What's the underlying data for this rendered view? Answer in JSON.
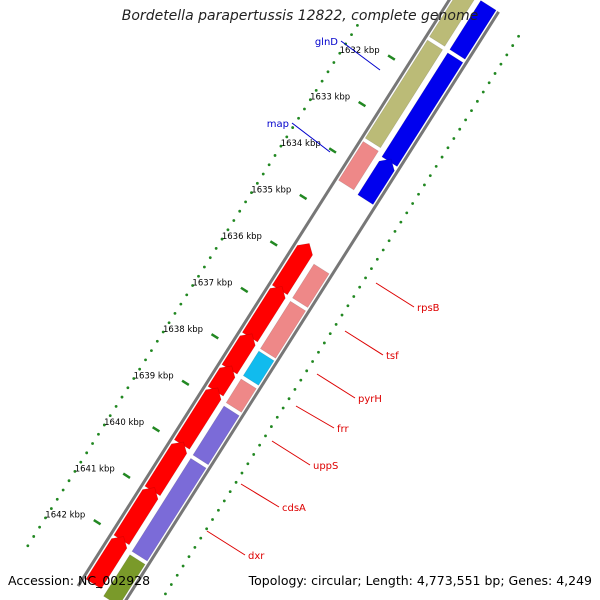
{
  "title": "Bordetella parapertussis 12822, complete genome",
  "footer": {
    "accession": "Accession: NC_002928",
    "summary": "Topology: circular; Length: 4,773,551 bp; Genes: 4,249"
  },
  "ticks": [
    "1632 kbp",
    "1633 kbp",
    "1634 kbp",
    "1635 kbp",
    "1636 kbp",
    "1637 kbp",
    "1638 kbp",
    "1639 kbp",
    "1640 kbp",
    "1641 kbp",
    "1642 kbp"
  ],
  "genes": [
    {
      "name": "glnD",
      "color": "#0000cc"
    },
    {
      "name": "map",
      "color": "#0000cc"
    },
    {
      "name": "rpsB",
      "color": "#dd0000"
    },
    {
      "name": "tsf",
      "color": "#dd0000"
    },
    {
      "name": "pyrH",
      "color": "#dd0000"
    },
    {
      "name": "frr",
      "color": "#dd0000"
    },
    {
      "name": "uppS",
      "color": "#dd0000"
    },
    {
      "name": "cdsA",
      "color": "#dd0000"
    },
    {
      "name": "dxr",
      "color": "#dd0000"
    }
  ],
  "colors": {
    "forward_cds": "#ff0000",
    "reverse_cds_light": "#ee8888",
    "blue_cds": "#0000ee",
    "purple_cds": "#7b6bd8",
    "cyan_cds": "#11bbee",
    "olive_cds": "#bbbb77",
    "dark_olive_cds": "#7a9a2a",
    "backbone": "#888888",
    "gc_dots": "#228822"
  }
}
